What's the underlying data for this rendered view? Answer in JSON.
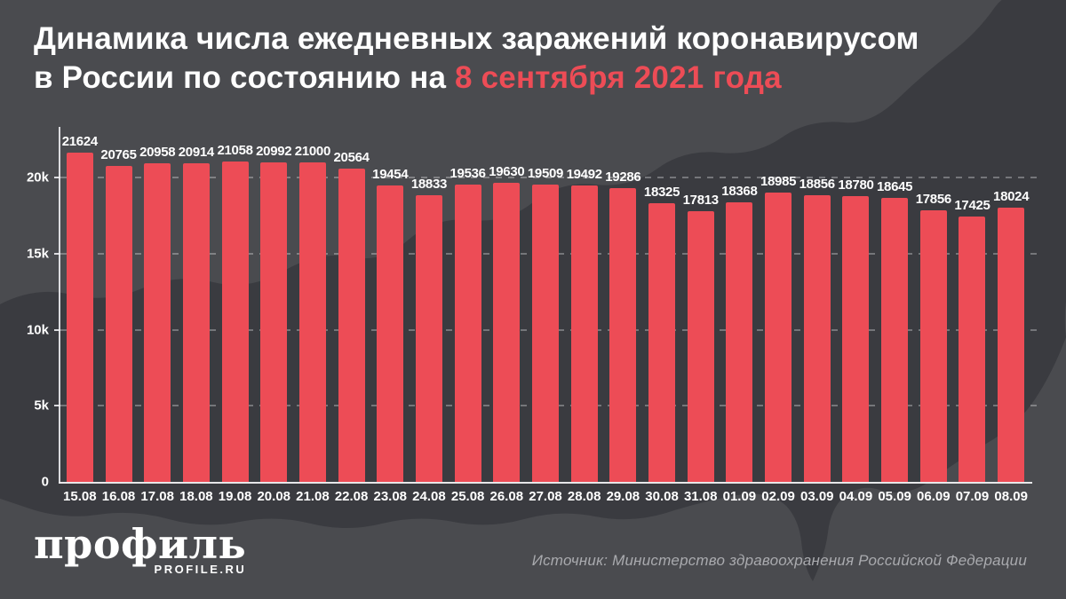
{
  "title": {
    "line1": "Динамика числа ежедневных заражений коронавирусом",
    "line2_prefix": "в России по состоянию на ",
    "line2_highlight": "8 сентября 2021 года"
  },
  "chart_data": {
    "type": "bar",
    "title": "Динамика числа ежедневных заражений коронавирусом в России по состоянию на 8 сентября 2021 года",
    "categories": [
      "15.08",
      "16.08",
      "17.08",
      "18.08",
      "19.08",
      "20.08",
      "21.08",
      "22.08",
      "23.08",
      "24.08",
      "25.08",
      "26.08",
      "27.08",
      "28.08",
      "29.08",
      "30.08",
      "31.08",
      "01.09",
      "02.09",
      "03.09",
      "04.09",
      "05.09",
      "06.09",
      "07.09",
      "08.09"
    ],
    "values": [
      21624,
      20765,
      20958,
      20914,
      21058,
      20992,
      21000,
      20564,
      19454,
      18833,
      19536,
      19630,
      19509,
      19492,
      19286,
      18325,
      17813,
      18368,
      18985,
      18856,
      18780,
      18645,
      17856,
      17425,
      18024
    ],
    "xlabel": "",
    "ylabel": "",
    "ylim": [
      0,
      22000
    ],
    "yticks": [
      {
        "value": 0,
        "label": "0"
      },
      {
        "value": 5000,
        "label": "5k"
      },
      {
        "value": 10000,
        "label": "10k"
      },
      {
        "value": 15000,
        "label": "15k"
      },
      {
        "value": 20000,
        "label": "20k"
      }
    ],
    "grid": "horizontal-dashed",
    "legend": "none",
    "value_labels": true
  },
  "footer": {
    "logo_text": "профиль",
    "logo_sub": "PROFILE.RU",
    "source": "Источник: Министерство здравоохранения Российской Федерации"
  },
  "colors": {
    "background": "#4a4b4f",
    "map_silhouette": "#2e2f35",
    "bar": "#ed4c56",
    "highlight": "#ed4c56",
    "text": "#ffffff",
    "muted_text": "#a9aaae"
  }
}
